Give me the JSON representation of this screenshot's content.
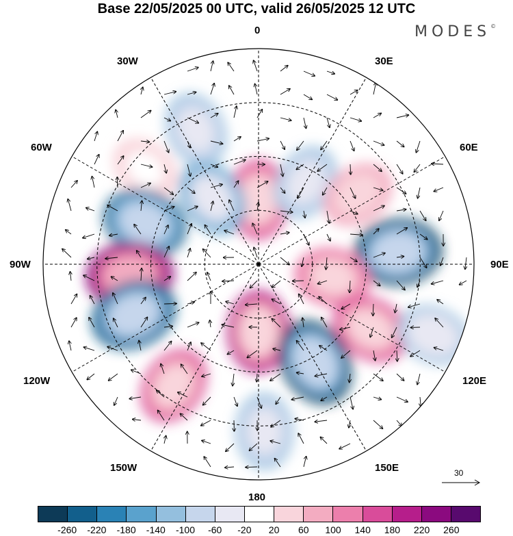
{
  "title": "Base 22/05/2025 00 UTC, valid 26/05/2025 12 UTC",
  "logo": "MODES",
  "logo_mark": "©",
  "labels": {
    "top": "0",
    "bottom": "180",
    "left": "90W",
    "right": "90E",
    "nw1": "30W",
    "nw2": "60W",
    "ne1": "30E",
    "ne2": "60E",
    "sw1": "120W",
    "sw2": "150W",
    "se1": "120E",
    "se2": "150E"
  },
  "reference_vector": "30",
  "colorbar": {
    "colors": [
      "#0d3a57",
      "#125f8c",
      "#2a82b5",
      "#5aa2cd",
      "#94bfde",
      "#c6d6ec",
      "#e8e8f3",
      "#ffffff",
      "#f9d5dc",
      "#f3acc1",
      "#ec7fac",
      "#d94c9a",
      "#b61e8b",
      "#8b0a7f",
      "#580a6e"
    ],
    "ticks": [
      "-260",
      "-220",
      "-180",
      "-140",
      "-100",
      "-60",
      "-20",
      "20",
      "60",
      "100",
      "140",
      "180",
      "220",
      "260"
    ]
  },
  "anomalies": [
    {
      "name": "center-north",
      "lon": 0,
      "colat": 24,
      "value": 170
    },
    {
      "name": "north-west-small",
      "lon": -35,
      "colat": 30,
      "value": -150
    },
    {
      "name": "north-east",
      "lon": 30,
      "colat": 35,
      "value": -120
    },
    {
      "name": "far-north-west",
      "lon": -25,
      "colat": 55,
      "value": -120
    },
    {
      "name": "north-60w",
      "lon": -50,
      "colat": 55,
      "value": 60
    },
    {
      "name": "ne-60e",
      "lon": 55,
      "colat": 45,
      "value": 100
    },
    {
      "name": "west-60w-90w",
      "lon": -70,
      "colat": 45,
      "value": -230
    },
    {
      "name": "west-90w",
      "lon": -95,
      "colat": 48,
      "value": 260
    },
    {
      "name": "east-90e",
      "lon": 85,
      "colat": 52,
      "value": -260
    },
    {
      "name": "east-100e",
      "lon": 100,
      "colat": 28,
      "value": 140
    },
    {
      "name": "southeast-120e",
      "lon": 120,
      "colat": 48,
      "value": 170
    },
    {
      "name": "southwest-110w",
      "lon": -112,
      "colat": 50,
      "value": -250
    },
    {
      "name": "south-center",
      "lon": 180,
      "colat": 25,
      "value": 200
    },
    {
      "name": "south-150e",
      "lon": 150,
      "colat": 42,
      "value": -270
    },
    {
      "name": "south-140w",
      "lon": -145,
      "colat": 55,
      "value": 150
    },
    {
      "name": "south-180",
      "lon": 178,
      "colat": 62,
      "value": -130
    },
    {
      "name": "far-east-120e",
      "lon": 112,
      "colat": 70,
      "value": -100
    }
  ]
}
